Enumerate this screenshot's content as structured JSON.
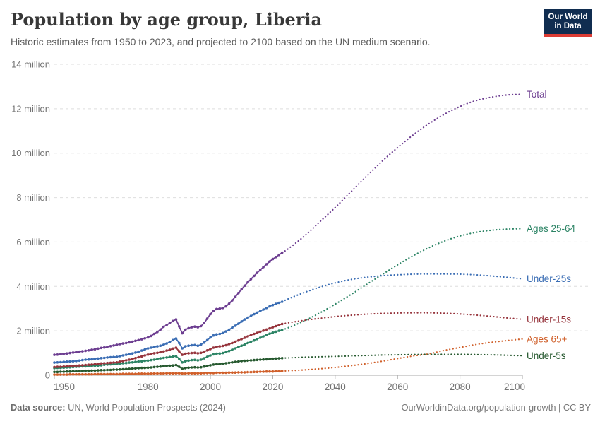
{
  "header": {
    "title": "Population by age group, Liberia",
    "subtitle": "Historic estimates from 1950 to 2023, and projected to 2100 based on the UN medium scenario.",
    "logo": {
      "line1": "Our World",
      "line2": "in Data",
      "bg_color": "#102d50",
      "bar_color": "#dc3c34"
    }
  },
  "footer": {
    "source_label": "Data source:",
    "source_text": " UN, World Population Prospects (2024)",
    "right_text": "OurWorldinData.org/population-growth | CC BY"
  },
  "chart_data": {
    "type": "line",
    "title": "Population by age group, Liberia",
    "unit": "million",
    "x_axis": {
      "range": [
        1950,
        2100
      ],
      "ticks": [
        1950,
        1980,
        2000,
        2020,
        2040,
        2060,
        2080,
        2100
      ]
    },
    "y_axis": {
      "range": [
        0,
        14
      ],
      "ticks": [
        0,
        2,
        4,
        6,
        8,
        10,
        12,
        14
      ],
      "unit_suffix": " million",
      "grid": "dashed"
    },
    "history_years": {
      "start": 1950,
      "end": 2023
    },
    "projection_years": [
      2023,
      2025,
      2030,
      2035,
      2040,
      2045,
      2050,
      2055,
      2060,
      2065,
      2070,
      2075,
      2080,
      2085,
      2090,
      2095,
      2100
    ],
    "legend_position": "right-edge-labels",
    "series": [
      {
        "name": "Ages 65+",
        "slug": "ages-65plus",
        "color": "#d0602b",
        "history": [
          0.03,
          0.03,
          0.03,
          0.03,
          0.03,
          0.04,
          0.04,
          0.04,
          0.04,
          0.04,
          0.04,
          0.04,
          0.04,
          0.05,
          0.05,
          0.05,
          0.05,
          0.05,
          0.05,
          0.05,
          0.05,
          0.05,
          0.06,
          0.06,
          0.06,
          0.06,
          0.06,
          0.07,
          0.07,
          0.07,
          0.07,
          0.07,
          0.08,
          0.08,
          0.08,
          0.08,
          0.09,
          0.09,
          0.09,
          0.09,
          0.09,
          0.08,
          0.08,
          0.09,
          0.09,
          0.09,
          0.09,
          0.09,
          0.1,
          0.1,
          0.1,
          0.1,
          0.11,
          0.11,
          0.11,
          0.11,
          0.12,
          0.12,
          0.12,
          0.13,
          0.13,
          0.13,
          0.14,
          0.14,
          0.15,
          0.15,
          0.16,
          0.16,
          0.17,
          0.17,
          0.17,
          0.18,
          0.18,
          0.19
        ],
        "projection": [
          0.19,
          0.2,
          0.24,
          0.29,
          0.35,
          0.43,
          0.52,
          0.63,
          0.75,
          0.87,
          0.96,
          1.12,
          1.25,
          1.38,
          1.48,
          1.56,
          1.63
        ]
      },
      {
        "name": "Under-5s",
        "slug": "under-5s",
        "color": "#26592f",
        "history": [
          0.15,
          0.15,
          0.16,
          0.16,
          0.17,
          0.17,
          0.18,
          0.18,
          0.19,
          0.19,
          0.2,
          0.2,
          0.21,
          0.21,
          0.22,
          0.23,
          0.23,
          0.24,
          0.24,
          0.25,
          0.25,
          0.26,
          0.27,
          0.28,
          0.29,
          0.3,
          0.31,
          0.32,
          0.33,
          0.33,
          0.34,
          0.35,
          0.37,
          0.38,
          0.39,
          0.41,
          0.42,
          0.43,
          0.44,
          0.46,
          0.38,
          0.29,
          0.32,
          0.34,
          0.35,
          0.36,
          0.35,
          0.36,
          0.39,
          0.42,
          0.45,
          0.48,
          0.5,
          0.51,
          0.52,
          0.54,
          0.56,
          0.58,
          0.6,
          0.62,
          0.64,
          0.65,
          0.66,
          0.67,
          0.68,
          0.69,
          0.7,
          0.71,
          0.72,
          0.73,
          0.74,
          0.75,
          0.76,
          0.77
        ],
        "projection": [
          0.77,
          0.78,
          0.81,
          0.83,
          0.85,
          0.87,
          0.89,
          0.91,
          0.92,
          0.93,
          0.94,
          0.94,
          0.94,
          0.93,
          0.92,
          0.9,
          0.88
        ]
      },
      {
        "name": "Ages 25-64",
        "slug": "ages-25-64",
        "color": "#2c8465",
        "history": [
          0.32,
          0.33,
          0.33,
          0.34,
          0.35,
          0.36,
          0.37,
          0.38,
          0.39,
          0.4,
          0.4,
          0.41,
          0.42,
          0.43,
          0.44,
          0.45,
          0.47,
          0.48,
          0.49,
          0.5,
          0.51,
          0.52,
          0.54,
          0.55,
          0.57,
          0.58,
          0.6,
          0.62,
          0.63,
          0.65,
          0.66,
          0.68,
          0.7,
          0.73,
          0.76,
          0.78,
          0.8,
          0.82,
          0.84,
          0.86,
          0.74,
          0.58,
          0.63,
          0.66,
          0.68,
          0.69,
          0.67,
          0.7,
          0.76,
          0.83,
          0.89,
          0.94,
          0.97,
          0.98,
          1.0,
          1.04,
          1.09,
          1.15,
          1.21,
          1.27,
          1.33,
          1.39,
          1.45,
          1.51,
          1.57,
          1.63,
          1.69,
          1.75,
          1.81,
          1.87,
          1.92,
          1.96,
          2.0,
          2.04
        ],
        "projection": [
          2.04,
          2.14,
          2.44,
          2.8,
          3.2,
          3.63,
          4.08,
          4.53,
          4.97,
          5.38,
          5.74,
          6.04,
          6.27,
          6.43,
          6.53,
          6.58,
          6.6
        ]
      },
      {
        "name": "Under-15s",
        "slug": "under-15s",
        "color": "#97353d",
        "history": [
          0.37,
          0.38,
          0.38,
          0.39,
          0.4,
          0.41,
          0.42,
          0.43,
          0.44,
          0.45,
          0.46,
          0.47,
          0.48,
          0.5,
          0.51,
          0.53,
          0.54,
          0.55,
          0.56,
          0.57,
          0.58,
          0.61,
          0.64,
          0.67,
          0.7,
          0.73,
          0.77,
          0.81,
          0.85,
          0.89,
          0.93,
          0.96,
          0.99,
          1.01,
          1.04,
          1.07,
          1.11,
          1.15,
          1.2,
          1.24,
          1.08,
          0.92,
          0.97,
          0.99,
          1.0,
          1.01,
          0.99,
          1.01,
          1.06,
          1.12,
          1.18,
          1.24,
          1.28,
          1.3,
          1.32,
          1.35,
          1.4,
          1.45,
          1.51,
          1.57,
          1.63,
          1.69,
          1.75,
          1.81,
          1.86,
          1.91,
          1.96,
          2.01,
          2.06,
          2.11,
          2.16,
          2.21,
          2.26,
          2.31
        ],
        "projection": [
          2.31,
          2.36,
          2.47,
          2.56,
          2.64,
          2.7,
          2.75,
          2.78,
          2.8,
          2.81,
          2.81,
          2.79,
          2.76,
          2.71,
          2.65,
          2.58,
          2.52
        ]
      },
      {
        "name": "Under-25s",
        "slug": "under-25s",
        "color": "#3a6db4",
        "history": [
          0.57,
          0.58,
          0.59,
          0.6,
          0.61,
          0.62,
          0.63,
          0.64,
          0.66,
          0.68,
          0.7,
          0.71,
          0.72,
          0.74,
          0.75,
          0.77,
          0.78,
          0.8,
          0.81,
          0.82,
          0.83,
          0.86,
          0.89,
          0.92,
          0.95,
          0.98,
          1.02,
          1.06,
          1.11,
          1.16,
          1.21,
          1.24,
          1.27,
          1.3,
          1.33,
          1.37,
          1.43,
          1.5,
          1.58,
          1.65,
          1.45,
          1.21,
          1.3,
          1.33,
          1.35,
          1.36,
          1.33,
          1.38,
          1.47,
          1.58,
          1.7,
          1.79,
          1.84,
          1.86,
          1.9,
          1.97,
          2.05,
          2.14,
          2.23,
          2.32,
          2.42,
          2.51,
          2.59,
          2.67,
          2.75,
          2.82,
          2.89,
          2.96,
          3.03,
          3.1,
          3.16,
          3.21,
          3.26,
          3.31
        ],
        "projection": [
          3.31,
          3.44,
          3.72,
          3.96,
          4.16,
          4.31,
          4.41,
          4.48,
          4.52,
          4.55,
          4.56,
          4.56,
          4.55,
          4.52,
          4.47,
          4.41,
          4.34
        ]
      },
      {
        "name": "Total",
        "slug": "total",
        "color": "#6d3e91",
        "history": [
          0.92,
          0.93,
          0.95,
          0.96,
          0.98,
          1.0,
          1.02,
          1.04,
          1.06,
          1.08,
          1.1,
          1.12,
          1.15,
          1.17,
          1.2,
          1.23,
          1.25,
          1.28,
          1.31,
          1.34,
          1.37,
          1.4,
          1.43,
          1.45,
          1.48,
          1.51,
          1.55,
          1.58,
          1.62,
          1.66,
          1.7,
          1.77,
          1.86,
          1.95,
          2.06,
          2.18,
          2.26,
          2.35,
          2.44,
          2.51,
          2.2,
          1.89,
          2.05,
          2.12,
          2.16,
          2.19,
          2.16,
          2.21,
          2.35,
          2.55,
          2.75,
          2.9,
          2.98,
          3.0,
          3.03,
          3.1,
          3.22,
          3.37,
          3.53,
          3.7,
          3.87,
          4.03,
          4.18,
          4.33,
          4.47,
          4.61,
          4.74,
          4.87,
          5.0,
          5.12,
          5.23,
          5.32,
          5.42,
          5.52
        ],
        "projection": [
          5.52,
          5.7,
          6.25,
          6.9,
          7.55,
          8.25,
          8.95,
          9.63,
          10.25,
          10.82,
          11.32,
          11.75,
          12.1,
          12.36,
          12.52,
          12.62,
          12.65
        ]
      }
    ],
    "style": {
      "grid_color": "#dedede",
      "baseline_color": "#a8a8a8",
      "axis_text_color": "#737373"
    }
  }
}
